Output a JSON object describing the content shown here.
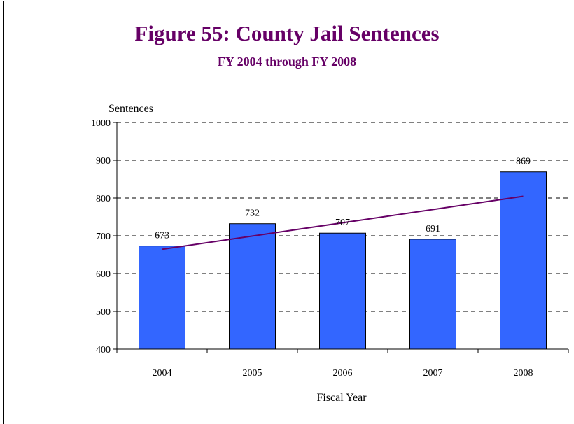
{
  "chart_data": {
    "type": "bar",
    "title": "Figure 55: County Jail Sentences",
    "subtitle": "FY 2004 through FY 2008",
    "xlabel": "Fiscal Year",
    "ylabel": "Sentences",
    "categories": [
      "2004",
      "2005",
      "2006",
      "2007",
      "2008"
    ],
    "values": [
      673,
      732,
      707,
      691,
      869
    ],
    "data_labels": [
      "673",
      "732",
      "707",
      "691",
      "869"
    ],
    "ylim": [
      400,
      1000
    ],
    "yticks": [
      400,
      500,
      600,
      700,
      800,
      900,
      1000
    ],
    "grid": "horizontal dashed",
    "trendline": "linear",
    "colors": {
      "bar": "#3366ff",
      "bar_border": "#000000",
      "trendline": "#660066",
      "title": "#660066"
    }
  }
}
